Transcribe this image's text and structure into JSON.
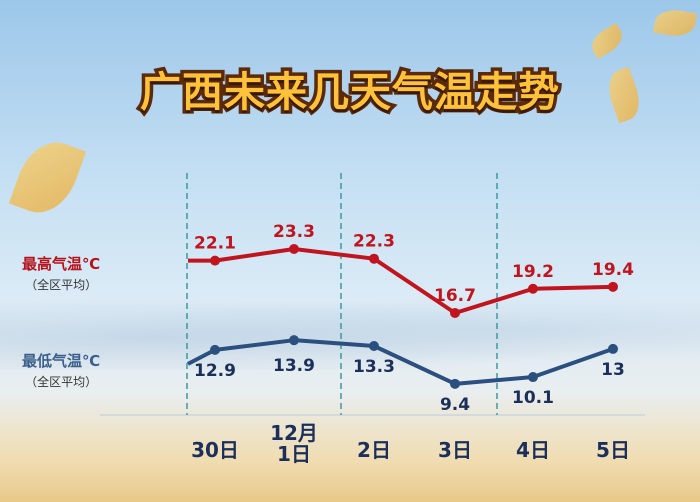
{
  "title": "广西未来几天气温走势",
  "legend": {
    "high": {
      "label": "最高气温℃",
      "note": "（全区平均）"
    },
    "low": {
      "label": "最低气温℃",
      "note": "（全区平均）"
    }
  },
  "chart_data": {
    "type": "line",
    "title": "广西未来几天气温走势",
    "categories": [
      "30日",
      "12月\n1日",
      "2日",
      "3日",
      "4日",
      "5日"
    ],
    "category_labels": [
      [
        "30日"
      ],
      [
        "12月",
        "1日"
      ],
      [
        "2日"
      ],
      [
        "3日"
      ],
      [
        "4日"
      ],
      [
        "5日"
      ]
    ],
    "series": [
      {
        "name": "最高气温℃（全区平均）",
        "values": [
          22.1,
          23.3,
          22.3,
          16.7,
          19.2,
          19.4
        ],
        "labels": [
          "22.1",
          "23.3",
          "22.3",
          "16.7",
          "19.2",
          "19.4"
        ],
        "color": "#c0141e"
      },
      {
        "name": "最低气温℃（全区平均）",
        "values": [
          12.9,
          13.9,
          13.3,
          9.4,
          10.1,
          13
        ],
        "labels": [
          "12.9",
          "13.9",
          "13.3",
          "9.4",
          "10.1",
          "13"
        ],
        "color": "#2b4f7e"
      }
    ],
    "grid": false,
    "legend_position": "left",
    "dividers_between": [
      "30日|12月1日 (left edge)",
      "1日|2日",
      "3日|4日"
    ]
  }
}
